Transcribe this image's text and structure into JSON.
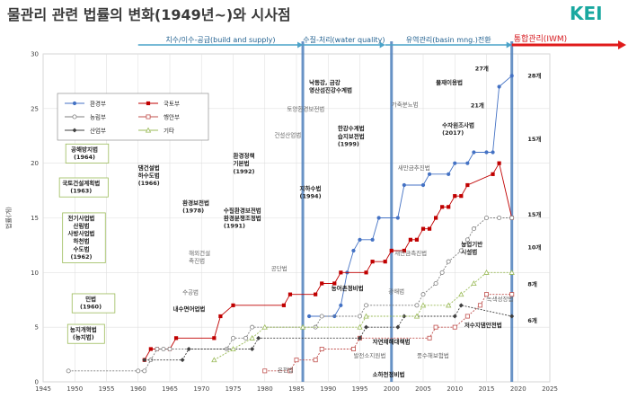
{
  "header": {
    "title": "물관리 관련 법률의 변화(1949년~)와 시사점",
    "logo": "KEI"
  },
  "chart_data": {
    "type": "line",
    "title": "",
    "xlabel": "",
    "ylabel": "법률(개)",
    "xlim": [
      1945,
      2025
    ],
    "ylim": [
      0,
      30
    ],
    "x_ticks": [
      1945,
      1950,
      1955,
      1960,
      1965,
      1970,
      1975,
      1980,
      1985,
      1990,
      1995,
      2000,
      2005,
      2010,
      2015,
      2020,
      2025
    ],
    "y_ticks": [
      0,
      5,
      10,
      15,
      20,
      25,
      30
    ],
    "grid": true,
    "legend_position": "top-left",
    "colors": {
      "env": "#4472c4",
      "land": "#c00000",
      "agri": "#7f7f7f",
      "safety": "#c0504d",
      "industry": "#404040",
      "other": "#9bbb59",
      "era_arrow": "#4aa3c9",
      "iwm_arrow": "#e01b1b",
      "vline": "#4f81bd"
    },
    "series": [
      {
        "key": "env",
        "name": "환경부",
        "marker": "filled-circle",
        "points": [
          [
            1987,
            6
          ],
          [
            1991,
            6
          ],
          [
            1992,
            7
          ],
          [
            1993,
            10
          ],
          [
            1994,
            12
          ],
          [
            1995,
            13
          ],
          [
            1997,
            13
          ],
          [
            1998,
            15
          ],
          [
            2001,
            15
          ],
          [
            2002,
            18
          ],
          [
            2005,
            18
          ],
          [
            2006,
            19
          ],
          [
            2009,
            19
          ],
          [
            2010,
            20
          ],
          [
            2012,
            20
          ],
          [
            2013,
            21
          ],
          [
            2015,
            21
          ],
          [
            2016,
            21
          ],
          [
            2017,
            27
          ],
          [
            2019,
            28
          ]
        ]
      },
      {
        "key": "land",
        "name": "국토부",
        "marker": "filled-square",
        "points": [
          [
            1961,
            2
          ],
          [
            1962,
            3
          ],
          [
            1963,
            3
          ],
          [
            1965,
            3
          ],
          [
            1966,
            4
          ],
          [
            1972,
            4
          ],
          [
            1973,
            6
          ],
          [
            1975,
            7
          ],
          [
            1983,
            7
          ],
          [
            1984,
            8
          ],
          [
            1988,
            8
          ],
          [
            1989,
            9
          ],
          [
            1991,
            9
          ],
          [
            1992,
            10
          ],
          [
            1996,
            10
          ],
          [
            1997,
            11
          ],
          [
            1999,
            11
          ],
          [
            2000,
            12
          ],
          [
            2002,
            12
          ],
          [
            2003,
            13
          ],
          [
            2004,
            13
          ],
          [
            2005,
            14
          ],
          [
            2006,
            14
          ],
          [
            2007,
            15
          ],
          [
            2008,
            16
          ],
          [
            2009,
            16
          ],
          [
            2010,
            17
          ],
          [
            2011,
            17
          ],
          [
            2012,
            18
          ],
          [
            2016,
            19
          ],
          [
            2017,
            20
          ],
          [
            2019,
            15
          ]
        ]
      },
      {
        "key": "agri",
        "name": "농림부",
        "marker": "open-circle",
        "points": [
          [
            1949,
            1
          ],
          [
            1960,
            1
          ],
          [
            1961,
            1
          ],
          [
            1962,
            2
          ],
          [
            1963,
            3
          ],
          [
            1964,
            3
          ],
          [
            1965,
            3
          ],
          [
            1974,
            3
          ],
          [
            1975,
            4
          ],
          [
            1977,
            4
          ],
          [
            1978,
            5
          ],
          [
            1988,
            5
          ],
          [
            1989,
            6
          ],
          [
            1995,
            6
          ],
          [
            1996,
            7
          ],
          [
            2004,
            7
          ],
          [
            2005,
            8
          ],
          [
            2007,
            9
          ],
          [
            2008,
            10
          ],
          [
            2009,
            11
          ],
          [
            2011,
            12
          ],
          [
            2012,
            13
          ],
          [
            2013,
            14
          ],
          [
            2015,
            15
          ],
          [
            2017,
            15
          ],
          [
            2019,
            15
          ]
        ]
      },
      {
        "key": "safety",
        "name": "행안부",
        "marker": "open-square",
        "points": [
          [
            1980,
            1
          ],
          [
            1984,
            1
          ],
          [
            1985,
            2
          ],
          [
            1988,
            2
          ],
          [
            1989,
            3
          ],
          [
            1994,
            3
          ],
          [
            1995,
            4
          ],
          [
            2006,
            4
          ],
          [
            2007,
            5
          ],
          [
            2010,
            5
          ],
          [
            2012,
            6
          ],
          [
            2014,
            7
          ],
          [
            2015,
            8
          ],
          [
            2019,
            8
          ]
        ]
      },
      {
        "key": "industry",
        "name": "산업부",
        "marker": "filled-diamond",
        "points": [
          [
            1961,
            2
          ],
          [
            1967,
            2
          ],
          [
            1968,
            3
          ],
          [
            1978,
            3
          ],
          [
            1979,
            4
          ],
          [
            1995,
            4
          ],
          [
            1996,
            5
          ],
          [
            2001,
            5
          ],
          [
            2002,
            6
          ],
          [
            2010,
            6
          ],
          [
            2011,
            7
          ],
          [
            2019,
            6
          ]
        ]
      },
      {
        "key": "other",
        "name": "기타",
        "marker": "open-triangle",
        "points": [
          [
            1972,
            2
          ],
          [
            1975,
            3
          ],
          [
            1978,
            4
          ],
          [
            1980,
            5
          ],
          [
            1986,
            5
          ],
          [
            1995,
            5
          ],
          [
            1996,
            6
          ],
          [
            2004,
            6
          ],
          [
            2005,
            7
          ],
          [
            2009,
            7
          ],
          [
            2011,
            8
          ],
          [
            2013,
            9
          ],
          [
            2015,
            10
          ],
          [
            2019,
            10
          ]
        ]
      }
    ],
    "eras": [
      {
        "label": "치수/이수-공급(build and supply)",
        "from": 1960,
        "to": 1986
      },
      {
        "label": "수질-처리(water quality)",
        "from": 1986,
        "to": 1999
      },
      {
        "label": "유역관리(basin mng.)전환",
        "from": 1999,
        "to": 2019
      }
    ],
    "iwm": {
      "label": "통합관리(IWM)",
      "from": 2019,
      "to": 2025
    },
    "vlines": [
      1986,
      2000,
      2019
    ],
    "end_labels": [
      {
        "text": "28개",
        "x": 2021.5,
        "y": 28
      },
      {
        "text": "15개",
        "x": 2021.5,
        "y": 22.2
      },
      {
        "text": "15개",
        "x": 2021.5,
        "y": 15.3
      },
      {
        "text": "10개",
        "x": 2021.5,
        "y": 12.3
      },
      {
        "text": "8개",
        "x": 2021.5,
        "y": 8.9
      },
      {
        "text": "6개",
        "x": 2021.5,
        "y": 5.6
      }
    ],
    "annotations": [
      {
        "lines": [
          "공해방지법",
          "(1964)"
        ],
        "x": 1949,
        "y": 21.1,
        "boxed": true,
        "bold": true
      },
      {
        "lines": [
          "국토건설계획법",
          "(1963)"
        ],
        "x": 1948,
        "y": 18.0,
        "boxed": true,
        "bold": true
      },
      {
        "lines": [
          "전기사업법",
          "산림법",
          "사방사업법",
          "하천법",
          "수도법",
          "(1962)"
        ],
        "x": 1948.5,
        "y": 14.8,
        "boxed": true,
        "bold": true
      },
      {
        "lines": [
          "민법",
          "(1960)"
        ],
        "x": 1950,
        "y": 7.4,
        "boxed": true,
        "bold": true
      },
      {
        "lines": [
          "농지개혁법",
          "(농지법)"
        ],
        "x": 1949.3,
        "y": 4.6,
        "boxed": true,
        "bold": true
      },
      {
        "lines": [
          "댐건설법",
          "하수도법",
          "(1966)"
        ],
        "x": 1960,
        "y": 19.4,
        "bold": true
      },
      {
        "lines": [
          "환경보전법",
          "(1978)"
        ],
        "x": 1967,
        "y": 16.2,
        "bold": true
      },
      {
        "lines": [
          "해외건설",
          "촉진법"
        ],
        "x": 1968,
        "y": 11.6,
        "bold": false
      },
      {
        "lines": [
          "수공법"
        ],
        "x": 1967,
        "y": 8.0,
        "bold": false
      },
      {
        "lines": [
          "내수면어업법"
        ],
        "x": 1965.5,
        "y": 6.5,
        "bold": true
      },
      {
        "lines": [
          "환경정책",
          "기본법",
          "(1992)"
        ],
        "x": 1975,
        "y": 20.5,
        "bold": true
      },
      {
        "lines": [
          "수질환경보전법",
          "환경분쟁조정법",
          "(1991)"
        ],
        "x": 1973.5,
        "y": 15.5,
        "bold": true
      },
      {
        "lines": [
          "건설산업법"
        ],
        "x": 1981.5,
        "y": 22.4,
        "bold": false
      },
      {
        "lines": [
          "토양환경보전법"
        ],
        "x": 1983.5,
        "y": 24.8,
        "bold": false
      },
      {
        "lines": [
          "낙동강, 금강",
          "영산섬진강수계법"
        ],
        "x": 1987,
        "y": 27.2,
        "bold": true
      },
      {
        "lines": [
          "지하수법",
          "(1994)"
        ],
        "x": 1985.5,
        "y": 17.5,
        "bold": true
      },
      {
        "lines": [
          "한강수계법",
          "습지보전법",
          "(1999)"
        ],
        "x": 1991.5,
        "y": 23.0,
        "bold": true
      },
      {
        "lines": [
          "공단법"
        ],
        "x": 1981,
        "y": 10.2,
        "bold": false
      },
      {
        "lines": [
          "농어촌정비법"
        ],
        "x": 1990.5,
        "y": 8.4,
        "bold": true
      },
      {
        "lines": [
          "가축분뇨법"
        ],
        "x": 2000,
        "y": 25.2,
        "bold": false
      },
      {
        "lines": [
          "물재이용법"
        ],
        "x": 2007,
        "y": 27.2,
        "bold": true
      },
      {
        "lines": [
          "수자원조사법",
          "(2017)"
        ],
        "x": 2008,
        "y": 23.3,
        "bold": true
      },
      {
        "lines": [
          "21개"
        ],
        "x": 2012.5,
        "y": 25.1,
        "bold": true
      },
      {
        "lines": [
          "27개"
        ],
        "x": 2013.2,
        "y": 28.5,
        "bold": true
      },
      {
        "lines": [
          "새만금추진법"
        ],
        "x": 2001,
        "y": 19.4,
        "bold": false
      },
      {
        "lines": [
          "새만금촉진법"
        ],
        "x": 2000.5,
        "y": 11.6,
        "bold": false
      },
      {
        "lines": [
          "농업기반",
          "시설법"
        ],
        "x": 2011,
        "y": 12.4,
        "bold": true
      },
      {
        "lines": [
          "광해법"
        ],
        "x": 1999.5,
        "y": 8.1,
        "bold": false
      },
      {
        "lines": [
          "녹색성장법"
        ],
        "x": 2015,
        "y": 7.4,
        "bold": false
      },
      {
        "lines": [
          "저수지댐안전법"
        ],
        "x": 2011.5,
        "y": 5.0,
        "bold": true
      },
      {
        "lines": [
          "자연재해대책법"
        ],
        "x": 1997,
        "y": 3.5,
        "bold": true
      },
      {
        "lines": [
          "발전소지원법"
        ],
        "x": 1994,
        "y": 2.2,
        "bold": false
      },
      {
        "lines": [
          "풍수해보험법"
        ],
        "x": 2004,
        "y": 2.2,
        "bold": false
      },
      {
        "lines": [
          "온천법"
        ],
        "x": 1982,
        "y": 0.9,
        "bold": false
      },
      {
        "lines": [
          "소하천정비법"
        ],
        "x": 1997,
        "y": 0.5,
        "bold": true
      }
    ]
  }
}
